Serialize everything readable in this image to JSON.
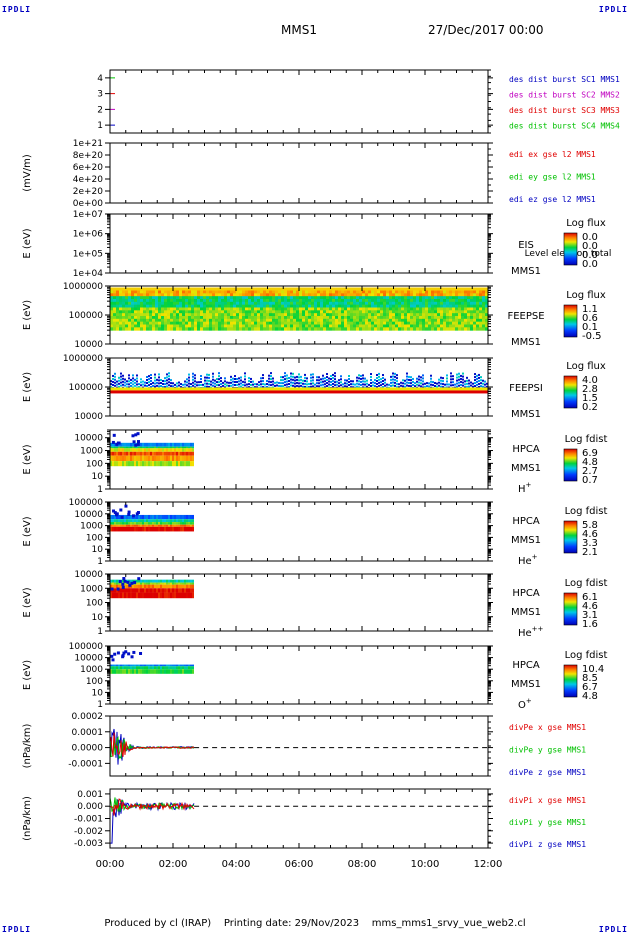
{
  "corners": {
    "tl": "IPDLI",
    "tr": "IPDLI",
    "bl": "IPDLI",
    "br": "IPDLI"
  },
  "header": {
    "mission": "MMS1",
    "date": "27/Dec/2017 00:00"
  },
  "footer": {
    "produced_by": "Produced by cl (IRAP)",
    "printing_date": "Printing date: 29/Nov/2023",
    "script": "mms_mms1_srvy_vue_web2.cl"
  },
  "colors": {
    "frame": "#000000",
    "blue": "#0000c0",
    "magenta": "#c000c0",
    "red": "#e00000",
    "green": "#00c000",
    "dashed": "#000000"
  },
  "chart_data": [
    {
      "id": "des-burst",
      "type": "line",
      "ylabel": "",
      "yticks": [
        "1",
        "2",
        "3",
        "4"
      ],
      "ylim": [
        0.5,
        4.5
      ],
      "legend": [
        {
          "text": "des dist burst SC1 MMS1",
          "color": "#0000c0"
        },
        {
          "text": "des dist burst SC2 MMS2",
          "color": "#c000c0"
        },
        {
          "text": "des dist burst SC3 MMS3",
          "color": "#e00000"
        },
        {
          "text": "des dist burst SC4 MMS4",
          "color": "#00c000"
        }
      ],
      "series": [
        {
          "name": "des dist burst SC1 MMS1",
          "color": "#0000c0",
          "level": 1
        },
        {
          "name": "des dist burst SC2 MMS2",
          "color": "#c000c0",
          "level": 2
        },
        {
          "name": "des dist burst SC3 MMS3",
          "color": "#e00000",
          "level": 3
        },
        {
          "name": "des dist burst SC4 MMS4",
          "color": "#00c000",
          "level": 4
        }
      ]
    },
    {
      "id": "edi-e",
      "type": "line",
      "ylabel": "(mV/m)",
      "yticks": [
        "0e+00",
        "2e+20",
        "4e+20",
        "6e+20",
        "8e+20",
        "1e+21"
      ],
      "ylim": [
        0,
        1e+21
      ],
      "zero_line": true,
      "legend": [
        {
          "text": "edi ex gse l2 MMS1",
          "color": "#e00000"
        },
        {
          "text": "edi ey gse l2 MMS1",
          "color": "#00c000"
        },
        {
          "text": "edi ez gse l2 MMS1",
          "color": "#0000c0"
        }
      ]
    },
    {
      "id": "eis",
      "type": "heatmap",
      "ylabel": "E (eV)",
      "yticks": [
        "1e+04",
        "1e+05",
        "1e+06",
        "1e+07"
      ],
      "log_y": true,
      "ylim": [
        10000.0,
        10000000.0
      ],
      "instrument": [
        "EIS",
        "MMS1"
      ],
      "overlay_text": "Level electron total",
      "colorbar": {
        "title": "Log flux",
        "labels": [
          "0.0",
          "0.0",
          "0.0",
          "0.0"
        ]
      }
    },
    {
      "id": "feepse",
      "type": "heatmap",
      "ylabel": "E (eV)",
      "yticks": [
        "10000",
        "100000",
        "1000000"
      ],
      "log_y": true,
      "ylim": [
        10000,
        1000000
      ],
      "instrument": [
        "FEEPSE",
        "MMS1"
      ],
      "colorbar": {
        "title": "Log flux",
        "labels": [
          "1.1",
          "0.6",
          "0.1",
          "-0.5"
        ]
      },
      "x_range": [
        "00:00",
        "12:00"
      ],
      "energy_range": [
        30000,
        700000
      ]
    },
    {
      "id": "feepsi",
      "type": "heatmap",
      "ylabel": "E (eV)",
      "yticks": [
        "10000",
        "100000",
        "1000000"
      ],
      "log_y": true,
      "ylim": [
        10000,
        1000000
      ],
      "instrument": [
        "FEEPSI",
        "MMS1"
      ],
      "colorbar": {
        "title": "Log flux",
        "labels": [
          "4.0",
          "2.8",
          "1.5",
          "0.2"
        ]
      },
      "x_range": [
        "00:00",
        "12:00"
      ],
      "energy_range": [
        60000,
        500000
      ]
    },
    {
      "id": "hpca-h",
      "type": "heatmap",
      "ylabel": "E (eV)",
      "yticks": [
        "1",
        "10",
        "100",
        "1000",
        "10000"
      ],
      "log_y": true,
      "ylim": [
        1,
        40000
      ],
      "instrument": [
        "HPCA",
        "MMS1"
      ],
      "species_base": "H",
      "species_sup": "+",
      "colorbar": {
        "title": "Log fdist",
        "labels": [
          "6.9",
          "4.8",
          "2.7",
          "0.7"
        ]
      },
      "x_range": [
        "00:00",
        "02:40"
      ]
    },
    {
      "id": "hpca-he",
      "type": "heatmap",
      "ylabel": "E (eV)",
      "yticks": [
        "1",
        "10",
        "100",
        "1000",
        "10000",
        "100000"
      ],
      "log_y": true,
      "ylim": [
        1,
        100000
      ],
      "instrument": [
        "HPCA",
        "MMS1"
      ],
      "species_base": "He",
      "species_sup": "+",
      "colorbar": {
        "title": "Log fdist",
        "labels": [
          "5.8",
          "4.6",
          "3.3",
          "2.1"
        ]
      },
      "x_range": [
        "00:00",
        "02:40"
      ]
    },
    {
      "id": "hpca-hepp",
      "type": "heatmap",
      "ylabel": "E (eV)",
      "yticks": [
        "1",
        "10",
        "100",
        "1000",
        "10000"
      ],
      "log_y": true,
      "ylim": [
        1,
        10000
      ],
      "instrument": [
        "HPCA",
        "MMS1"
      ],
      "species_base": "He",
      "species_sup": "++",
      "colorbar": {
        "title": "Log fdist",
        "labels": [
          "6.1",
          "4.6",
          "3.1",
          "1.6"
        ]
      },
      "x_range": [
        "00:00",
        "02:40"
      ]
    },
    {
      "id": "hpca-o",
      "type": "heatmap",
      "ylabel": "E (eV)",
      "yticks": [
        "1",
        "10",
        "100",
        "1000",
        "10000",
        "100000"
      ],
      "log_y": true,
      "ylim": [
        1,
        100000
      ],
      "instrument": [
        "HPCA",
        "MMS1"
      ],
      "species_base": "O",
      "species_sup": "+",
      "colorbar": {
        "title": "Log fdist",
        "labels": [
          "10.4",
          "8.5",
          "6.7",
          "4.8"
        ]
      },
      "x_range": [
        "00:00",
        "02:40"
      ]
    },
    {
      "id": "divpe",
      "type": "line",
      "ylabel": "(nPa/km)",
      "yticks": [
        "-0.0001",
        "0.0000",
        "0.0001",
        "0.0002"
      ],
      "ylim": [
        -0.00018,
        0.0002
      ],
      "zero_line": true,
      "legend": [
        {
          "text": "divPe x gse MMS1",
          "color": "#e00000"
        },
        {
          "text": "divPe y gse MMS1",
          "color": "#00c000"
        },
        {
          "text": "divPe z gse MMS1",
          "color": "#0000c0"
        }
      ],
      "x_range": [
        "00:00",
        "02:40"
      ]
    },
    {
      "id": "divpi",
      "type": "line",
      "ylabel": "(nPa/km)",
      "yticks": [
        "-0.003",
        "-0.002",
        "-0.001",
        "0.000",
        "0.001"
      ],
      "ylim": [
        -0.0034,
        0.0014
      ],
      "zero_line": true,
      "legend": [
        {
          "text": "divPi x gse MMS1",
          "color": "#e00000"
        },
        {
          "text": "divPi y gse MMS1",
          "color": "#00c000"
        },
        {
          "text": "divPi z gse MMS1",
          "color": "#0000c0"
        }
      ],
      "x_range": [
        "00:00",
        "02:40"
      ]
    }
  ],
  "xaxis": {
    "ticks": [
      "00:00",
      "02:00",
      "04:00",
      "06:00",
      "08:00",
      "10:00",
      "12:00"
    ],
    "range_hours": [
      0,
      12
    ]
  }
}
